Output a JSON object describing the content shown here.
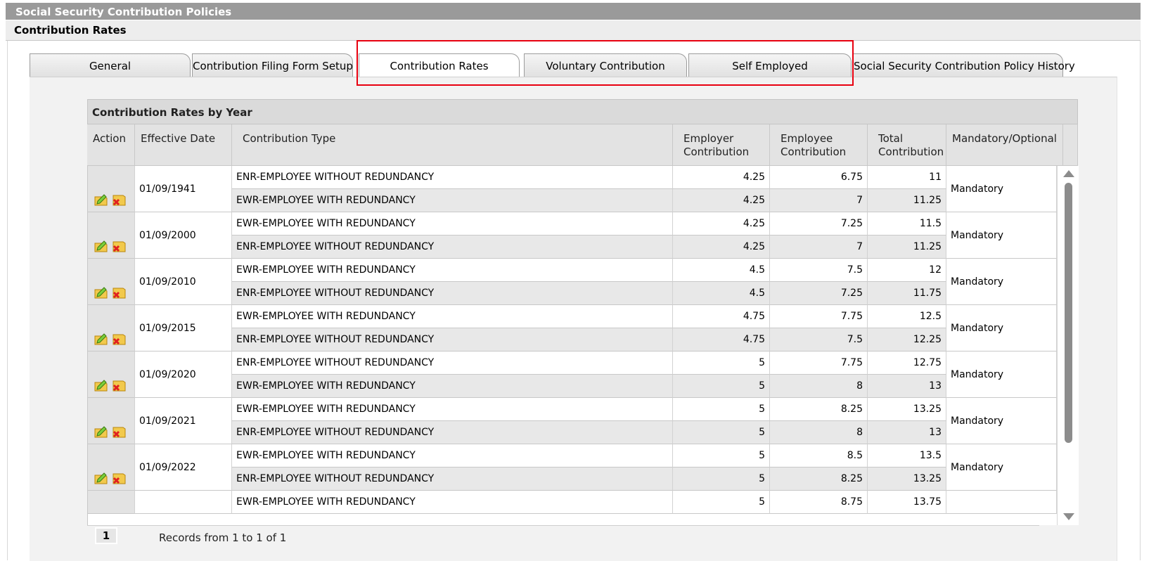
{
  "window": {
    "title": "Social Security Contribution Policies"
  },
  "page": {
    "subtitle": "Contribution Rates"
  },
  "tabs": [
    {
      "label": "General"
    },
    {
      "label": "Contribution Filing Form Setup"
    },
    {
      "label": "Contribution Rates",
      "active": true
    },
    {
      "label": "Voluntary Contribution"
    },
    {
      "label": "Self Employed"
    },
    {
      "label": "Social Security Contribution Policy History"
    }
  ],
  "grid": {
    "title": "Contribution Rates by Year",
    "columns": {
      "action": "Action",
      "effective_date": "Effective Date",
      "contribution_type": "Contribution Type",
      "employer": "Employer Contribution",
      "employee": "Employee Contribution",
      "total": "Total Contribution",
      "mandatory": "Mandatory/Optional"
    },
    "groups": [
      {
        "date": "01/09/1941",
        "mandatory": "Mandatory",
        "rows": [
          {
            "type": "ENR-EMPLOYEE WITHOUT REDUNDANCY",
            "employer": "4.25",
            "employee": "6.75",
            "total": "11"
          },
          {
            "type": "EWR-EMPLOYEE WITH REDUNDANCY",
            "employer": "4.25",
            "employee": "7",
            "total": "11.25"
          }
        ]
      },
      {
        "date": "01/09/2000",
        "mandatory": "Mandatory",
        "rows": [
          {
            "type": "EWR-EMPLOYEE WITH REDUNDANCY",
            "employer": "4.25",
            "employee": "7.25",
            "total": "11.5"
          },
          {
            "type": "ENR-EMPLOYEE WITHOUT REDUNDANCY",
            "employer": "4.25",
            "employee": "7",
            "total": "11.25"
          }
        ]
      },
      {
        "date": "01/09/2010",
        "mandatory": "Mandatory",
        "rows": [
          {
            "type": "EWR-EMPLOYEE WITH REDUNDANCY",
            "employer": "4.5",
            "employee": "7.5",
            "total": "12"
          },
          {
            "type": "ENR-EMPLOYEE WITHOUT REDUNDANCY",
            "employer": "4.5",
            "employee": "7.25",
            "total": "11.75"
          }
        ]
      },
      {
        "date": "01/09/2015",
        "mandatory": "Mandatory",
        "rows": [
          {
            "type": "EWR-EMPLOYEE WITH REDUNDANCY",
            "employer": "4.75",
            "employee": "7.75",
            "total": "12.5"
          },
          {
            "type": "ENR-EMPLOYEE WITHOUT REDUNDANCY",
            "employer": "4.75",
            "employee": "7.5",
            "total": "12.25"
          }
        ]
      },
      {
        "date": "01/09/2020",
        "mandatory": "Mandatory",
        "rows": [
          {
            "type": "ENR-EMPLOYEE WITHOUT REDUNDANCY",
            "employer": "5",
            "employee": "7.75",
            "total": "12.75"
          },
          {
            "type": "EWR-EMPLOYEE WITH REDUNDANCY",
            "employer": "5",
            "employee": "8",
            "total": "13"
          }
        ]
      },
      {
        "date": "01/09/2021",
        "mandatory": "Mandatory",
        "rows": [
          {
            "type": "EWR-EMPLOYEE WITH REDUNDANCY",
            "employer": "5",
            "employee": "8.25",
            "total": "13.25"
          },
          {
            "type": "ENR-EMPLOYEE WITHOUT REDUNDANCY",
            "employer": "5",
            "employee": "8",
            "total": "13"
          }
        ]
      },
      {
        "date": "01/09/2022",
        "mandatory": "Mandatory",
        "rows": [
          {
            "type": "EWR-EMPLOYEE WITH REDUNDANCY",
            "employer": "5",
            "employee": "8.5",
            "total": "13.5"
          },
          {
            "type": "ENR-EMPLOYEE WITHOUT REDUNDANCY",
            "employer": "5",
            "employee": "8.25",
            "total": "13.25"
          }
        ]
      },
      {
        "date": "",
        "mandatory": "",
        "rows": [
          {
            "type": "EWR-EMPLOYEE WITH REDUNDANCY",
            "employer": "5",
            "employee": "8.75",
            "total": "13.75"
          }
        ]
      }
    ],
    "row_actions": {
      "edit_icon": "edit-icon",
      "delete_icon": "delete-icon"
    }
  },
  "pager": {
    "current_page": "1",
    "records_text": "Records from 1 to 1 of 1"
  },
  "colors": {
    "title_bar": "#9a9a9a",
    "highlight_box": "#e8000f",
    "header_bg": "#e3e3e3",
    "row_alt": "#e8e8e8"
  }
}
